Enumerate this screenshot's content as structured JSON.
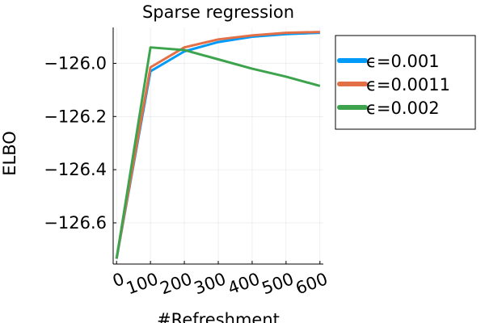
{
  "chart_data": {
    "type": "line",
    "title": "Sparse regression",
    "xlabel": "#Refreshment",
    "ylabel": "ELBO",
    "xlim": [
      -10,
      610
    ],
    "ylim": [
      -126.755,
      -125.865
    ],
    "xticks": [
      0,
      100,
      200,
      300,
      400,
      500,
      600
    ],
    "xtick_labels": [
      "0",
      "100",
      "200",
      "300",
      "400",
      "500",
      "600"
    ],
    "yticks": [
      -126.6,
      -126.4,
      -126.2,
      -126.0
    ],
    "ytick_labels": [
      "−126.6",
      "−126.4",
      "−126.2",
      "−126.0"
    ],
    "grid": true,
    "legend_position": "outside-right-top",
    "x": [
      0,
      100,
      200,
      300,
      400,
      500,
      600
    ],
    "series": [
      {
        "name": "ϵ=0.001",
        "color": "#009af9",
        "values": [
          -126.735,
          -126.03,
          -125.955,
          -125.92,
          -125.9,
          -125.89,
          -125.885
        ]
      },
      {
        "name": "ϵ=0.0011",
        "color": "#e26f46",
        "values": [
          -126.735,
          -126.015,
          -125.94,
          -125.91,
          -125.895,
          -125.885,
          -125.882
        ]
      },
      {
        "name": "ϵ=0.002",
        "color": "#3da44d",
        "values": [
          -126.735,
          -125.94,
          -125.95,
          -125.985,
          -126.02,
          -126.05,
          -126.085
        ]
      }
    ]
  }
}
